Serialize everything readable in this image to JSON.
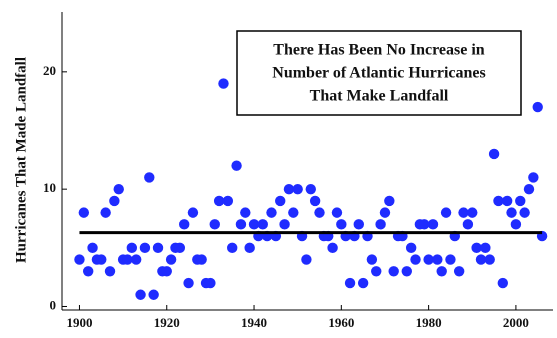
{
  "chart_data": {
    "type": "scatter",
    "title": [
      "There Has Been No Increase in",
      "Number of Atlantic Hurricanes",
      "That Make Landfall"
    ],
    "y_label": "Hurricanes That Made Landfall",
    "x": [
      1900,
      1901,
      1902,
      1903,
      1904,
      1905,
      1906,
      1907,
      1908,
      1909,
      1910,
      1911,
      1912,
      1913,
      1914,
      1915,
      1916,
      1917,
      1918,
      1919,
      1920,
      1921,
      1922,
      1923,
      1924,
      1925,
      1926,
      1927,
      1928,
      1929,
      1930,
      1931,
      1932,
      1933,
      1934,
      1935,
      1936,
      1937,
      1938,
      1939,
      1940,
      1941,
      1942,
      1943,
      1944,
      1945,
      1946,
      1947,
      1948,
      1949,
      1950,
      1951,
      1952,
      1953,
      1954,
      1955,
      1956,
      1957,
      1958,
      1959,
      1960,
      1961,
      1962,
      1963,
      1964,
      1965,
      1966,
      1967,
      1968,
      1969,
      1970,
      1971,
      1972,
      1973,
      1974,
      1975,
      1976,
      1977,
      1978,
      1979,
      1980,
      1981,
      1982,
      1983,
      1984,
      1985,
      1986,
      1987,
      1988,
      1989,
      1990,
      1991,
      1992,
      1993,
      1994,
      1995,
      1996,
      1997,
      1998,
      1999,
      2000,
      2001,
      2002,
      2003,
      2004,
      2005,
      2006
    ],
    "series": [
      {
        "color": "#1f2bff",
        "values": [
          4,
          8,
          3,
          5,
          4,
          4,
          8,
          3,
          9,
          10,
          4,
          4,
          5,
          4,
          1,
          5,
          11,
          1,
          5,
          3,
          3,
          4,
          5,
          5,
          7,
          2,
          8,
          4,
          4,
          2,
          2,
          7,
          9,
          19,
          9,
          5,
          12,
          7,
          8,
          5,
          7,
          6,
          7,
          6,
          8,
          6,
          9,
          7,
          10,
          8,
          10,
          6,
          4,
          10,
          9,
          8,
          6,
          6,
          5,
          8,
          7,
          6,
          2,
          6,
          7,
          2,
          6,
          4,
          3,
          7,
          8,
          9,
          3,
          6,
          6,
          3,
          5,
          4,
          7,
          7,
          4,
          7,
          4,
          3,
          8,
          4,
          6,
          3,
          8,
          7,
          8,
          5,
          4,
          5,
          4,
          13,
          9,
          2,
          9,
          8,
          7,
          9,
          8,
          10,
          11,
          17,
          6
        ]
      }
    ],
    "mean_line": {
      "y": 6.3,
      "x": [
        1900,
        2006
      ],
      "color": "#000000"
    },
    "xlim": [
      1896,
      2008.5
    ],
    "ylim": [
      -0.3,
      25.1
    ],
    "xticks": [
      1900,
      1920,
      1940,
      1960,
      1980,
      2000
    ],
    "yticks": [
      0,
      10,
      20
    ]
  }
}
